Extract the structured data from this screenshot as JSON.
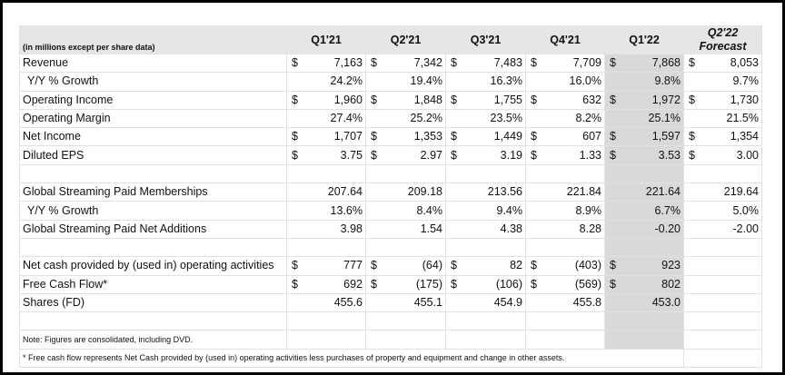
{
  "header": {
    "units_note": "(in millions except per share data)",
    "columns": [
      "Q1'21",
      "Q2'21",
      "Q3'21",
      "Q4'21",
      "Q1'22"
    ],
    "forecast_col": {
      "line1": "Q2'22",
      "line2": "Forecast"
    }
  },
  "rows": [
    {
      "label": "Revenue",
      "currency": "$",
      "values": [
        "7,163",
        "7,342",
        "7,483",
        "7,709",
        "7,868",
        "8,053"
      ]
    },
    {
      "label": "Y/Y % Growth",
      "values": [
        "24.2%",
        "19.4%",
        "16.3%",
        "16.0%",
        "9.8%",
        "9.7%"
      ]
    },
    {
      "label": "Operating Income",
      "currency": "$",
      "values": [
        "1,960",
        "1,848",
        "1,755",
        "632",
        "1,972",
        "1,730"
      ]
    },
    {
      "label": "Operating Margin",
      "values": [
        "27.4%",
        "25.2%",
        "23.5%",
        "8.2%",
        "25.1%",
        "21.5%"
      ]
    },
    {
      "label": "Net Income",
      "currency": "$",
      "values": [
        "1,707",
        "1,353",
        "1,449",
        "607",
        "1,597",
        "1,354"
      ]
    },
    {
      "label": "Diluted EPS",
      "currency": "$",
      "values": [
        "3.75",
        "2.97",
        "3.19",
        "1.33",
        "3.53",
        "3.00"
      ]
    },
    {
      "label": "Global Streaming Paid Memberships",
      "values": [
        "207.64",
        "209.18",
        "213.56",
        "221.84",
        "221.64",
        "219.64"
      ]
    },
    {
      "label": "Y/Y % Growth",
      "values": [
        "13.6%",
        "8.4%",
        "9.4%",
        "8.9%",
        "6.7%",
        "5.0%"
      ]
    },
    {
      "label": "Global Streaming Paid Net Additions",
      "values": [
        "3.98",
        "1.54",
        "4.38",
        "8.28",
        "-0.20",
        "-2.00"
      ]
    },
    {
      "label": "Net cash provided by (used in) operating activities",
      "currency": "$",
      "values": [
        "777",
        "(64)",
        "82",
        "(403)",
        "923",
        ""
      ]
    },
    {
      "label": "Free Cash Flow*",
      "currency": "$",
      "values": [
        "692",
        "(175)",
        "(106)",
        "(569)",
        "802",
        ""
      ]
    },
    {
      "label": "Shares (FD)",
      "values": [
        "455.6",
        "455.1",
        "454.9",
        "455.8",
        "453.0",
        ""
      ]
    }
  ],
  "notes": {
    "note": "Note: Figures are consolidated, including DVD.",
    "footnote": "* Free cash flow represents Net Cash provided by (used in) operating activities less purchases of property and equipment and change in other assets."
  }
}
